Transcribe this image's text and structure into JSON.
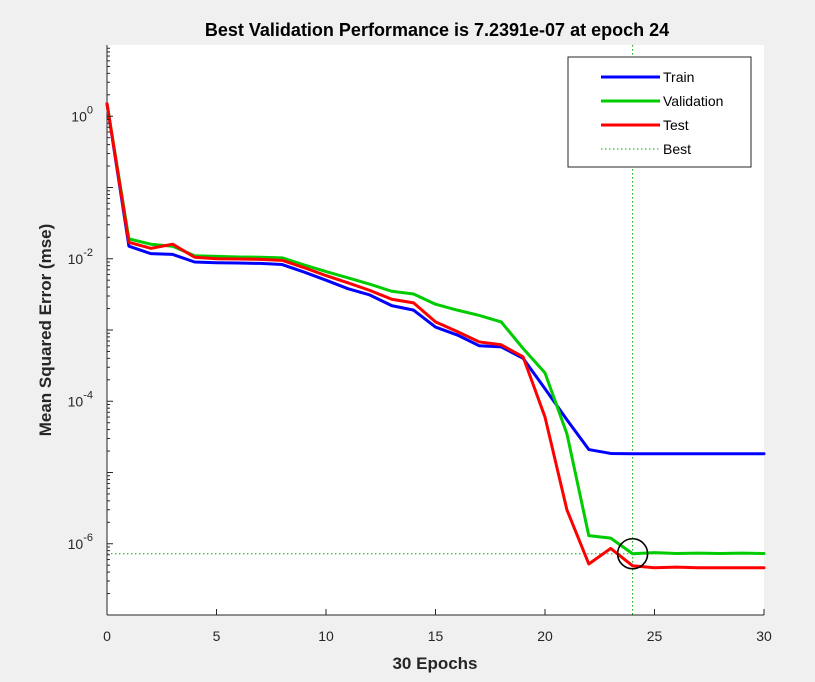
{
  "chart_data": {
    "type": "line",
    "title": "Best Validation Performance is 7.2391e-07 at epoch 24",
    "xlabel": "30 Epochs",
    "ylabel": "Mean Squared Error  (mse)",
    "xlim": [
      0,
      30
    ],
    "ylim": [
      1e-07,
      10
    ],
    "yscale": "log",
    "xticks": [
      0,
      5,
      10,
      15,
      20,
      25,
      30
    ],
    "yticks": [
      {
        "value": 1e-06,
        "base": "10",
        "exp": "-6"
      },
      {
        "value": 0.0001,
        "base": "10",
        "exp": "-4"
      },
      {
        "value": 0.01,
        "base": "10",
        "exp": "-2"
      },
      {
        "value": 1,
        "base": "10",
        "exp": "0"
      }
    ],
    "grid": false,
    "legend_position": "top-right",
    "series": [
      {
        "name": "Train",
        "color": "#0000ff",
        "x": [
          0,
          1,
          2,
          3,
          4,
          5,
          6,
          7,
          8,
          9,
          10,
          11,
          12,
          13,
          14,
          15,
          16,
          17,
          18,
          19,
          20,
          21,
          22,
          23,
          24,
          25,
          26,
          27,
          28,
          29,
          30
        ],
        "y": [
          1.5,
          0.015,
          0.0118,
          0.0115,
          0.009,
          0.0088,
          0.0087,
          0.0086,
          0.0083,
          0.0065,
          0.005,
          0.0038,
          0.0031,
          0.0022,
          0.0019,
          0.0011,
          0.00085,
          0.0006,
          0.00058,
          0.0004,
          0.00015,
          5.5e-05,
          2.1e-05,
          1.85e-05,
          1.83e-05,
          1.83e-05,
          1.83e-05,
          1.83e-05,
          1.83e-05,
          1.83e-05,
          1.83e-05
        ]
      },
      {
        "name": "Validation",
        "color": "#00cc00",
        "x": [
          0,
          1,
          2,
          3,
          4,
          5,
          6,
          7,
          8,
          9,
          10,
          11,
          12,
          13,
          14,
          15,
          16,
          17,
          18,
          19,
          20,
          21,
          22,
          23,
          24,
          25,
          26,
          27,
          28,
          29,
          30
        ],
        "y": [
          1.5,
          0.019,
          0.016,
          0.015,
          0.011,
          0.0108,
          0.0106,
          0.0105,
          0.0103,
          0.0082,
          0.0066,
          0.0054,
          0.0044,
          0.0035,
          0.0032,
          0.0023,
          0.0019,
          0.0016,
          0.0013,
          0.00055,
          0.00025,
          3.5e-05,
          1.3e-06,
          1.2e-06,
          7.2391e-07,
          7.5e-07,
          7.3e-07,
          7.4e-07,
          7.3e-07,
          7.4e-07,
          7.3e-07
        ]
      },
      {
        "name": "Test",
        "color": "#ff0000",
        "x": [
          0,
          1,
          2,
          3,
          4,
          5,
          6,
          7,
          8,
          9,
          10,
          11,
          12,
          13,
          14,
          15,
          16,
          17,
          18,
          19,
          20,
          21,
          22,
          23,
          24,
          25,
          26,
          27,
          28,
          29,
          30
        ],
        "y": [
          1.5,
          0.017,
          0.014,
          0.016,
          0.0105,
          0.01,
          0.0099,
          0.0098,
          0.0095,
          0.0075,
          0.0058,
          0.0046,
          0.0036,
          0.0027,
          0.0024,
          0.0013,
          0.00095,
          0.00068,
          0.00062,
          0.00042,
          6e-05,
          3e-06,
          5.2e-07,
          8.6e-07,
          4.9e-07,
          4.6e-07,
          4.7e-07,
          4.6e-07,
          4.6e-07,
          4.6e-07,
          4.6e-07
        ]
      }
    ],
    "best": {
      "name": "Best",
      "color": "#00aa00",
      "epoch": 24,
      "value": 7.2391e-07
    }
  }
}
